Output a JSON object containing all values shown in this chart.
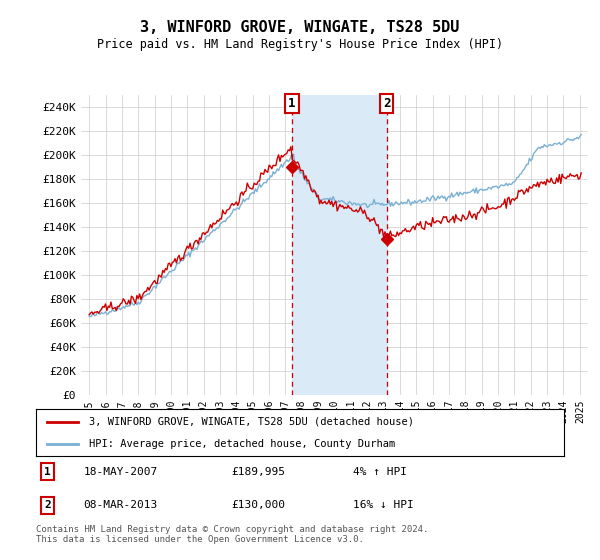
{
  "title": "3, WINFORD GROVE, WINGATE, TS28 5DU",
  "subtitle": "Price paid vs. HM Land Registry's House Price Index (HPI)",
  "ylabel_ticks": [
    "£0",
    "£20K",
    "£40K",
    "£60K",
    "£80K",
    "£100K",
    "£120K",
    "£140K",
    "£160K",
    "£180K",
    "£200K",
    "£220K",
    "£240K"
  ],
  "ylim": [
    0,
    250000
  ],
  "yticks": [
    0,
    20000,
    40000,
    60000,
    80000,
    100000,
    120000,
    140000,
    160000,
    180000,
    200000,
    220000,
    240000
  ],
  "x_start_year": 1995,
  "x_end_year": 2025,
  "sale1_date": 2007.38,
  "sale1_price": 189995,
  "sale1_label": "1",
  "sale2_date": 2013.18,
  "sale2_price": 130000,
  "sale2_label": "2",
  "shade_color": "#daeaf7",
  "dashed_color": "#cc0000",
  "line_color_red": "#cc0000",
  "line_color_blue": "#7ab0d4",
  "background_color": "#ffffff",
  "grid_color": "#cccccc",
  "legend1": "3, WINFORD GROVE, WINGATE, TS28 5DU (detached house)",
  "legend2": "HPI: Average price, detached house, County Durham",
  "table_row1": [
    "1",
    "18-MAY-2007",
    "£189,995",
    "4% ↑ HPI"
  ],
  "table_row2": [
    "2",
    "08-MAR-2013",
    "£130,000",
    "16% ↓ HPI"
  ],
  "footer": "Contains HM Land Registry data © Crown copyright and database right 2024.\nThis data is licensed under the Open Government Licence v3.0."
}
